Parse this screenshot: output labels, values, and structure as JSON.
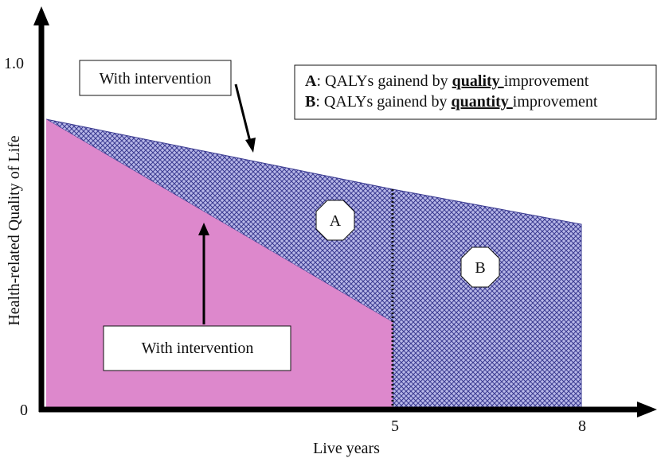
{
  "axes": {
    "y_label": "Health-related Quality of Life",
    "x_label": "Live years",
    "y_ticks": [
      "1.0",
      "0"
    ],
    "x_ticks": [
      "5",
      "8"
    ]
  },
  "callouts": [
    "With intervention",
    "With intervention"
  ],
  "regions": [
    "A",
    "B"
  ],
  "legend": [
    {
      "key": "A",
      "text": ": QALYs gainend by ",
      "emphasis": "quality ",
      "tail": "improvement"
    },
    {
      "key": "B",
      "text": ": QALYs gainend by ",
      "emphasis": "quantity ",
      "tail": "improvement"
    }
  ]
}
